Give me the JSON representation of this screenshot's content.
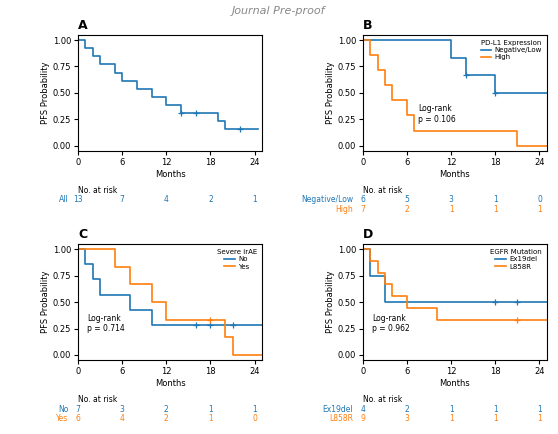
{
  "chart_data": [
    {
      "type": "step",
      "title": "A",
      "xlabel": "Months",
      "ylabel": "PFS Probability",
      "xlim": [
        0,
        25
      ],
      "ylim": [
        -0.05,
        1.05
      ],
      "xticks": [
        0,
        6,
        12,
        18,
        24
      ],
      "yticks": [
        {
          "value": 0.0,
          "label": "0.00"
        },
        {
          "value": 0.25,
          "label": "0.25"
        },
        {
          "value": 0.5,
          "label": "0.50"
        },
        {
          "value": 0.75,
          "label": "0.75"
        },
        {
          "value": 1.0,
          "label": "1.00"
        }
      ],
      "series": [
        {
          "x": [
            0,
            0.5,
            1,
            1.5,
            2,
            3,
            4,
            5,
            6,
            8,
            9,
            10,
            11,
            12,
            14,
            16,
            18,
            19,
            20,
            22,
            24.5
          ],
          "values": [
            1.0,
            1.0,
            0.923,
            0.923,
            0.846,
            0.769,
            0.769,
            0.692,
            0.615,
            0.538,
            0.538,
            0.462,
            0.462,
            0.385,
            0.308,
            0.308,
            0.308,
            0.231,
            0.154,
            0.154,
            0.154
          ],
          "marker": "+",
          "censor_x": [
            14,
            16,
            22
          ],
          "censor_values": [
            0.308,
            0.308,
            0.154
          ]
        }
      ],
      "risk_table": {
        "title": "No. at risk",
        "x": [
          0,
          6,
          12,
          18,
          24
        ],
        "rows": [
          {
            "label": "All",
            "values": [
              13,
              7,
              4,
              2,
              1
            ]
          }
        ]
      }
    },
    {
      "type": "step",
      "title": "B",
      "xlabel": "Months",
      "ylabel": "PFS Probability",
      "xlim": [
        0,
        25
      ],
      "ylim": [
        -0.05,
        1.05
      ],
      "xticks": [
        0,
        6,
        12,
        18,
        24
      ],
      "yticks": [
        {
          "value": 0.0,
          "label": "0.00"
        },
        {
          "value": 0.25,
          "label": "0.25"
        },
        {
          "value": 0.5,
          "label": "0.50"
        },
        {
          "value": 0.75,
          "label": "0.75"
        },
        {
          "value": 1.0,
          "label": "1.00"
        }
      ],
      "legend": "upper right",
      "legend_title": "PD-L1 Expression",
      "series": [
        {
          "name": "Negative/Low",
          "x": [
            0,
            2,
            3,
            6,
            12,
            14,
            18,
            20,
            25
          ],
          "values": [
            1.0,
            1.0,
            1.0,
            1.0,
            0.833,
            0.667,
            0.5,
            0.5,
            0.5
          ],
          "marker": "+",
          "censor_x": [
            14,
            18
          ],
          "censor_values": [
            0.667,
            0.5
          ]
        },
        {
          "name": "High",
          "x": [
            0,
            1,
            2,
            3,
            4,
            6,
            7,
            10,
            21,
            25
          ],
          "values": [
            1.0,
            0.857,
            0.714,
            0.571,
            0.429,
            0.286,
            0.143,
            0.143,
            0.0,
            0.0
          ]
        }
      ],
      "annotations": [
        "Log-rank\np = 0.106"
      ],
      "risk_table": {
        "title": "No. at risk",
        "x": [
          0,
          6,
          12,
          18,
          24
        ],
        "rows": [
          {
            "label": "Negative/Low",
            "values": [
              6,
              5,
              3,
              1,
              0
            ]
          },
          {
            "label": "High",
            "values": [
              7,
              2,
              1,
              1,
              1
            ]
          }
        ]
      }
    },
    {
      "type": "step",
      "title": "C",
      "xlabel": "Months",
      "ylabel": "PFS Probability",
      "xlim": [
        0,
        25
      ],
      "ylim": [
        -0.05,
        1.05
      ],
      "xticks": [
        0,
        6,
        12,
        18,
        24
      ],
      "yticks": [
        {
          "value": 0.0,
          "label": "0.00"
        },
        {
          "value": 0.25,
          "label": "0.25"
        },
        {
          "value": 0.5,
          "label": "0.50"
        },
        {
          "value": 0.75,
          "label": "0.75"
        },
        {
          "value": 1.0,
          "label": "1.00"
        }
      ],
      "legend": "upper right",
      "legend_title": "Severe irAE",
      "series": [
        {
          "name": "No",
          "x": [
            0,
            1,
            2,
            3,
            7,
            10,
            12,
            16,
            18,
            21,
            25
          ],
          "values": [
            1.0,
            0.857,
            0.714,
            0.571,
            0.429,
            0.286,
            0.286,
            0.286,
            0.286,
            0.286,
            0.286
          ],
          "marker": "+",
          "censor_x": [
            16,
            18,
            21
          ],
          "censor_values": [
            0.286,
            0.286,
            0.286
          ]
        },
        {
          "name": "Yes",
          "x": [
            0,
            2,
            5,
            7,
            10,
            12,
            18,
            20,
            21,
            25
          ],
          "values": [
            1.0,
            1.0,
            0.833,
            0.667,
            0.5,
            0.333,
            0.333,
            0.167,
            0.0,
            0.0
          ],
          "marker": "+",
          "censor_x": [
            18
          ],
          "censor_values": [
            0.333
          ]
        }
      ],
      "annotations": [
        "Log-rank\np = 0.714"
      ],
      "risk_table": {
        "title": "No. at risk",
        "x": [
          0,
          6,
          12,
          18,
          24
        ],
        "rows": [
          {
            "label": "No",
            "values": [
              7,
              3,
              2,
              1,
              1
            ]
          },
          {
            "label": "Yes",
            "values": [
              6,
              4,
              2,
              1,
              0
            ]
          }
        ]
      }
    },
    {
      "type": "step",
      "title": "D",
      "xlabel": "Months",
      "ylabel": "PFS Probability",
      "xlim": [
        0,
        25
      ],
      "ylim": [
        -0.05,
        1.05
      ],
      "xticks": [
        0,
        6,
        12,
        18,
        24
      ],
      "yticks": [
        {
          "value": 0.0,
          "label": "0.00"
        },
        {
          "value": 0.25,
          "label": "0.25"
        },
        {
          "value": 0.5,
          "label": "0.50"
        },
        {
          "value": 0.75,
          "label": "0.75"
        },
        {
          "value": 1.0,
          "label": "1.00"
        }
      ],
      "legend": "upper right",
      "legend_title": "EGFR Mutation",
      "series": [
        {
          "name": "Ex19del",
          "x": [
            0,
            1,
            3,
            6,
            9,
            12,
            18,
            21,
            25
          ],
          "values": [
            1.0,
            0.75,
            0.5,
            0.5,
            0.5,
            0.5,
            0.5,
            0.5,
            0.5
          ],
          "marker": "+",
          "censor_x": [
            18,
            21
          ],
          "censor_values": [
            0.5,
            0.5
          ]
        },
        {
          "name": "L858R",
          "x": [
            0,
            1,
            2,
            3,
            4,
            6,
            10,
            12,
            21,
            25
          ],
          "values": [
            1.0,
            0.889,
            0.778,
            0.667,
            0.556,
            0.444,
            0.333,
            0.333,
            0.333,
            0.333
          ],
          "marker": "+",
          "censor_x": [
            21
          ],
          "censor_values": [
            0.333
          ]
        }
      ],
      "annotations": [
        "Log-rank\np = 0.962"
      ],
      "risk_table": {
        "title": "No. at risk",
        "x": [
          0,
          6,
          12,
          18,
          24
        ],
        "rows": [
          {
            "label": "Ex19del",
            "values": [
              4,
              2,
              1,
              1,
              1
            ]
          },
          {
            "label": "L858R",
            "values": [
              9,
              3,
              1,
              1,
              1
            ]
          }
        ]
      }
    }
  ],
  "watermark": "Journal Pre-proof"
}
